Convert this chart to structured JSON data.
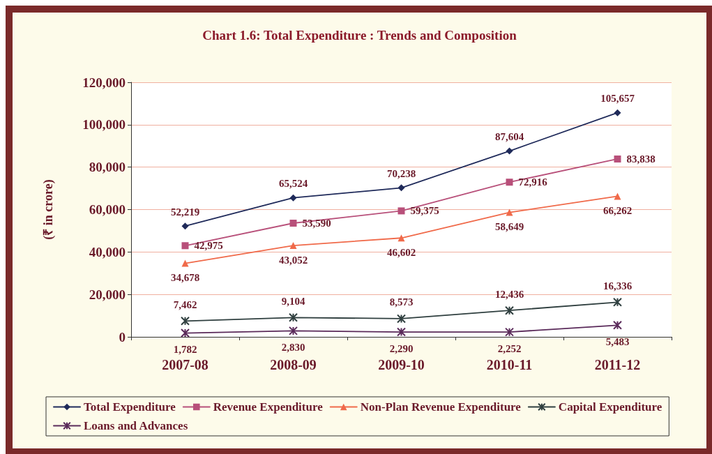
{
  "chart_data": {
    "type": "line",
    "title": "Chart 1.6: Total Expenditure : Trends and Composition",
    "ylabel": "(₹ in crore)",
    "categories": [
      "2007-08",
      "2008-09",
      "2009-10",
      "2010-11",
      "2011-12"
    ],
    "series": [
      {
        "name": "Total Expenditure",
        "color": "#1f2a5a",
        "marker": "diamond",
        "values": [
          52219,
          65524,
          70238,
          87604,
          105657
        ],
        "value_labels": [
          "52,219",
          "65,524",
          "70,238",
          "87,604",
          "105,657"
        ]
      },
      {
        "name": "Revenue Expenditure",
        "color": "#b8507a",
        "marker": "square",
        "values": [
          42975,
          53590,
          59375,
          72916,
          83838
        ],
        "value_labels": [
          "42,975",
          "53,590",
          "59,375",
          "72,916",
          "83,838"
        ]
      },
      {
        "name": "Non-Plan Revenue Expenditure",
        "color": "#f06a4a",
        "marker": "triangle",
        "values": [
          34678,
          43052,
          46602,
          58649,
          66262
        ],
        "value_labels": [
          "34,678",
          "43,052",
          "46,602",
          "58,649",
          "66,262"
        ]
      },
      {
        "name": "Capital Expenditure",
        "color": "#2f3f3f",
        "marker": "cross",
        "values": [
          7462,
          9104,
          8573,
          12436,
          16336
        ],
        "value_labels": [
          "7,462",
          "9,104",
          "8,573",
          "12,436",
          "16,336"
        ]
      },
      {
        "name": "Loans and Advances",
        "color": "#5a2a5a",
        "marker": "cross",
        "values": [
          1782,
          2830,
          2290,
          2252,
          5483
        ],
        "value_labels": [
          "1,782",
          "2,830",
          "2,290",
          "2,252",
          "5,483"
        ]
      }
    ],
    "ylim": [
      0,
      120000
    ],
    "yticks": [
      0,
      {
        "value": 20000,
        "label": "20,000"
      },
      {
        "value": 40000,
        "label": "40,000"
      },
      {
        "value": 60000,
        "label": "60,000"
      },
      {
        "value": 80000,
        "label": "80,000"
      },
      {
        "value": 100000,
        "label": "100,000"
      },
      {
        "value": 120000,
        "label": "120,000"
      }
    ],
    "grid": "y",
    "legend": "bottom"
  }
}
